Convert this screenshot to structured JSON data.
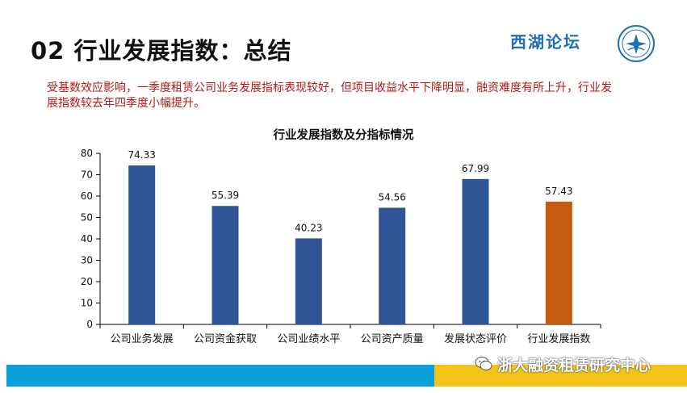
{
  "slide": {
    "title": "02  行业发展指数：总结",
    "brand": "西湖论坛",
    "summary": "受基数效应影响，一季度租赁公司业务发展指标表现较好，但项目收益水平下降明显，融资难度有所上升，行业发展指数较去年四季度小幅提升。",
    "watermark": "浙大融资租赁研究中心"
  },
  "colors": {
    "bar_default": "#2f5597",
    "bar_highlight": "#c55a11",
    "summary_text": "#b01818",
    "footer_blue": "#0aa0da",
    "footer_yellow": "#f2c418"
  },
  "chart_data": {
    "type": "bar",
    "title": "行业发展指数及分指标情况",
    "categories": [
      "公司业务发展",
      "公司资金获取",
      "公司业绩水平",
      "公司资产质量",
      "发展状态评价",
      "行业发展指数"
    ],
    "values": [
      74.33,
      55.39,
      40.23,
      54.56,
      67.99,
      57.43
    ],
    "value_labels": [
      "74.33",
      "55.39",
      "40.23",
      "54.56",
      "67.99",
      "57.43"
    ],
    "highlight_index": 5,
    "ylim": [
      0,
      80
    ],
    "yticks": [
      0,
      10,
      20,
      30,
      40,
      50,
      60,
      70,
      80
    ],
    "xlabel": "",
    "ylabel": "",
    "grid": false,
    "legend": "none"
  }
}
